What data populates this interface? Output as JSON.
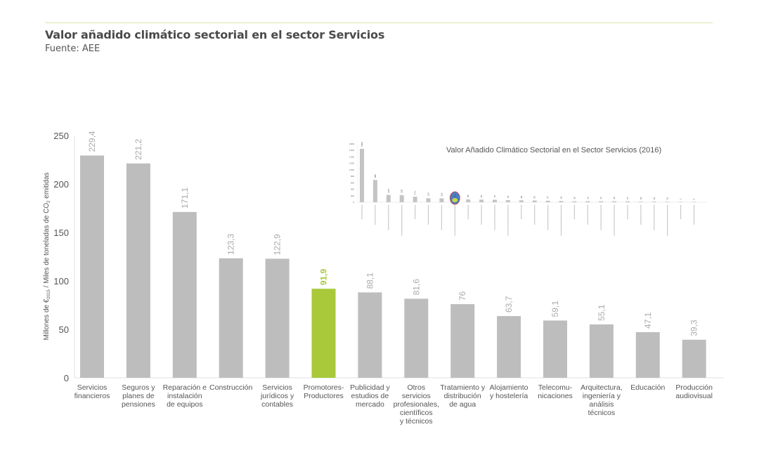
{
  "header": {
    "title": "Valor añadido climático sectorial en el sector Servicios",
    "source": "Fuente: AEE"
  },
  "colors": {
    "bar": "#bdbdbd",
    "highlight": "#a9c93b",
    "accent_line": "#d7e4a6"
  },
  "chart_data": {
    "type": "bar",
    "title": "Valor añadido climático sectorial en el sector Servicios",
    "ylabel": "Millones de €2015 / Miles de toneladas de CO2 emitidas",
    "xlabel": "",
    "ylim": [
      0,
      250
    ],
    "yticks": [
      0,
      50,
      100,
      150,
      200,
      250
    ],
    "grid": false,
    "highlight_category": "Promotores-Productores",
    "categories": [
      "Servicios\nfinancieros",
      "Seguros y\nplanes de\npensiones",
      "Reparación e\ninstalación\nde equipos",
      "Construcción",
      "Servicios\njurídicos y\ncontables",
      "Promotores-\nProductores",
      "Publicidad y\nestudios de\nmercado",
      "Otros\nservicios\nprofesionales,\ncientíficos\ny técnicos",
      "Tratamiento y\ndistribución\nde agua",
      "Alojamiento\ny hostelería",
      "Telecomu-\nnicaciones",
      "Arquitectura,\ningeniería y\nanálisis\ntécnicos",
      "Educación",
      "Producción\naudiovisual"
    ],
    "values": [
      229.4,
      221.2,
      171.1,
      123.3,
      122.9,
      91.9,
      88.1,
      81.6,
      76,
      63.7,
      59.1,
      55.1,
      47.1,
      39.3
    ],
    "value_labels": [
      "229,4",
      "221,2",
      "171,1",
      "123,3",
      "122,9",
      "91,9",
      "88,1",
      "81,6",
      "76",
      "63,7",
      "59,1",
      "55,1",
      "47,1",
      "39,3"
    ]
  },
  "inset": {
    "title": "Valor Añadido Climático Sectorial en el Sector Servicios (2016)",
    "yticks": [
      "0",
      "200",
      "400",
      "600",
      "800",
      "1.000",
      "1.200",
      "1.400",
      "1.600",
      "1.800"
    ],
    "ylim": [
      0,
      1800
    ],
    "values": [
      1650,
      688,
      228,
      220,
      171,
      123,
      119,
      92,
      88,
      82,
      76,
      64,
      59,
      55,
      47,
      39,
      30,
      32,
      31,
      30,
      27,
      18,
      19,
      16,
      1,
      0
    ],
    "highlighted_index": 7
  }
}
